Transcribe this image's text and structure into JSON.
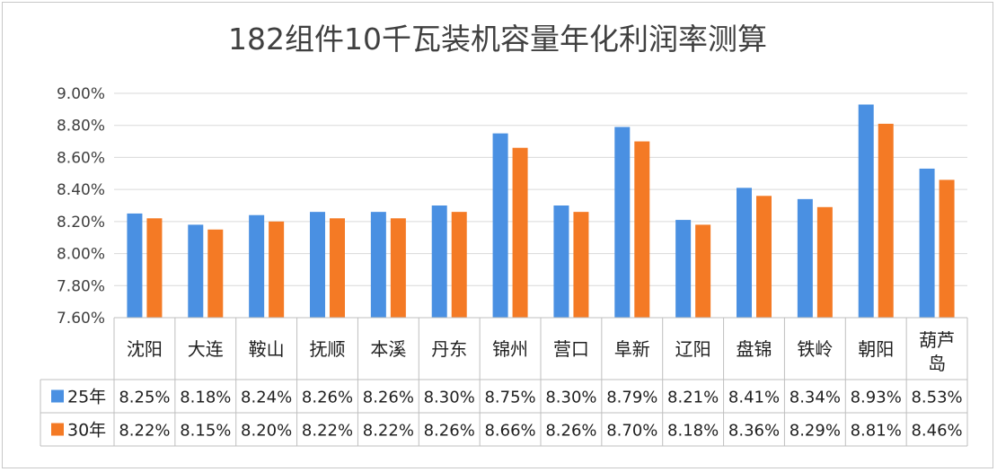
{
  "chart_data": {
    "type": "bar",
    "title": "182组件10千瓦装机容量年化利润率测算",
    "categories": [
      "沈阳",
      "大连",
      "鞍山",
      "抚顺",
      "本溪",
      "丹东",
      "锦州",
      "营口",
      "阜新",
      "辽阳",
      "盘锦",
      "铁岭",
      "朝阳",
      "葫芦岛"
    ],
    "series": [
      {
        "name": "25年",
        "color": "#4A90E2",
        "values": [
          8.25,
          8.18,
          8.24,
          8.26,
          8.26,
          8.3,
          8.75,
          8.3,
          8.79,
          8.21,
          8.41,
          8.34,
          8.93,
          8.53
        ],
        "labels": [
          "8.25%",
          "8.18%",
          "8.24%",
          "8.26%",
          "8.26%",
          "8.30%",
          "8.75%",
          "8.30%",
          "8.79%",
          "8.21%",
          "8.41%",
          "8.34%",
          "8.93%",
          "8.53%"
        ]
      },
      {
        "name": "30年",
        "color": "#F47A25",
        "values": [
          8.22,
          8.15,
          8.2,
          8.22,
          8.22,
          8.26,
          8.66,
          8.26,
          8.7,
          8.18,
          8.36,
          8.29,
          8.81,
          8.46
        ],
        "labels": [
          "8.22%",
          "8.15%",
          "8.20%",
          "8.22%",
          "8.22%",
          "8.26%",
          "8.66%",
          "8.26%",
          "8.70%",
          "8.18%",
          "8.36%",
          "8.29%",
          "8.81%",
          "8.46%"
        ]
      }
    ],
    "ylim": [
      7.6,
      9.0
    ],
    "yticks": [
      7.6,
      7.8,
      8.0,
      8.2,
      8.4,
      8.6,
      8.8,
      9.0
    ],
    "ytick_labels": [
      "7.60%",
      "7.80%",
      "8.00%",
      "8.20%",
      "8.40%",
      "8.60%",
      "8.80%",
      "9.00%"
    ],
    "grid": true,
    "legend": "data-table"
  }
}
